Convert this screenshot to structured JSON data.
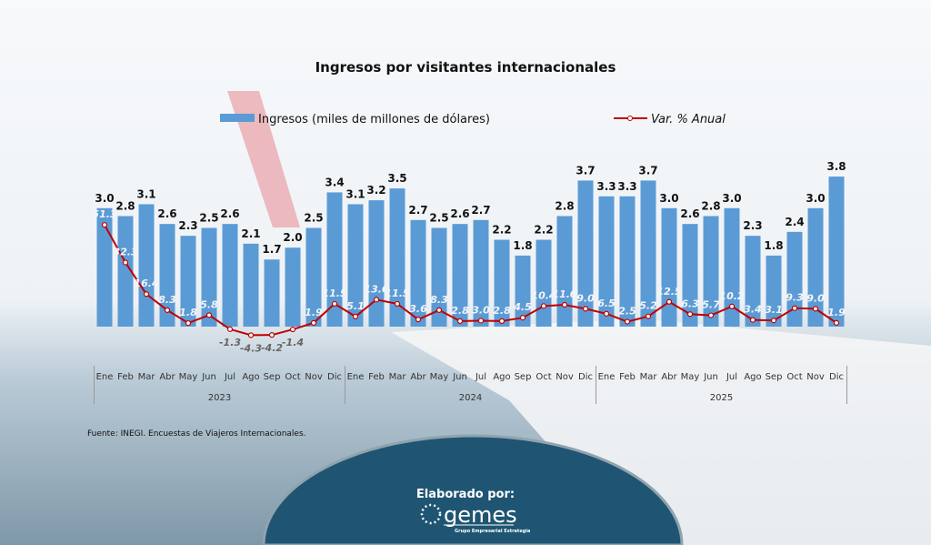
{
  "chart_data": {
    "type": "bar+line",
    "title": "Ingresos por visitantes internacionales",
    "categories": [
      "Ene",
      "Feb",
      "Mar",
      "Abr",
      "May",
      "Jun",
      "Jul",
      "Ago",
      "Sep",
      "Oct",
      "Nov",
      "Dic",
      "Ene",
      "Feb",
      "Mar",
      "Abr",
      "May",
      "Jun",
      "Jul",
      "Ago",
      "Sep",
      "Oct",
      "Nov",
      "Dic",
      "Ene",
      "Feb",
      "Mar",
      "Abr",
      "May",
      "Jun",
      "Jul",
      "Ago",
      "Sep",
      "Oct",
      "Nov",
      "Dic"
    ],
    "years": [
      "2023",
      "2024",
      "2025"
    ],
    "legend_placement": "top",
    "grid": false,
    "series": [
      {
        "name": "Ingresos (miles de millones de dólares)",
        "type": "bar",
        "color": "#5b9bd5",
        "values": [
          3.0,
          2.8,
          3.1,
          2.6,
          2.3,
          2.5,
          2.6,
          2.1,
          1.7,
          2.0,
          2.5,
          3.4,
          3.1,
          3.2,
          3.5,
          2.7,
          2.5,
          2.6,
          2.7,
          2.2,
          1.8,
          2.2,
          2.8,
          3.7,
          3.3,
          3.3,
          3.7,
          3.0,
          2.6,
          2.8,
          3.0,
          2.3,
          1.8,
          2.4,
          3.0,
          3.8
        ]
      },
      {
        "name": "Var. % Anual",
        "type": "line",
        "color": "#c00000",
        "values": [
          51.3,
          32.3,
          16.4,
          8.3,
          1.8,
          5.8,
          -1.3,
          -4.3,
          -4.2,
          -1.4,
          1.9,
          11.5,
          5.1,
          13.6,
          11.5,
          3.6,
          8.3,
          2.8,
          3.0,
          2.8,
          4.5,
          10.4,
          11.0,
          9.0,
          6.5,
          2.5,
          5.2,
          12.5,
          6.3,
          5.7,
          10.2,
          3.4,
          3.1,
          9.3,
          9.0,
          1.9
        ]
      }
    ]
  },
  "source": "Fuente: INEGI. Encuestas de Viajeros Internacionales.",
  "credit": {
    "label": "Elaborado por:",
    "logo_text": "gemes",
    "logo_subtitle": "Grupo Empresarial Estrategia"
  }
}
